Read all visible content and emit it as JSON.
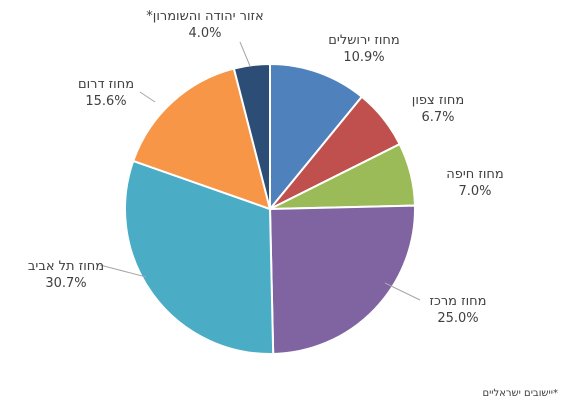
{
  "chart_data": {
    "type": "pie",
    "title": "",
    "slices": [
      {
        "name": "מחוז ירושלים",
        "value": 10.9,
        "label": "10.9%",
        "color": "#4f81bd"
      },
      {
        "name": "מחוז צפון",
        "value": 6.7,
        "label": "6.7%",
        "color": "#c0504d"
      },
      {
        "name": "מחוז חיפה",
        "value": 7.0,
        "label": "7.0%",
        "color": "#9bbb59"
      },
      {
        "name": "מחוז מרכז",
        "value": 25.0,
        "label": "25.0%",
        "color": "#8064a2"
      },
      {
        "name": "מחוז תל אביב",
        "value": 30.7,
        "label": "30.7%",
        "color": "#4bacc6"
      },
      {
        "name": "מחוז דרום",
        "value": 15.6,
        "label": "15.6%",
        "color": "#f79646"
      },
      {
        "name": "אזור יהודה והשומרון*",
        "value": 4.0,
        "label": "4.0%",
        "color": "#2c4d75"
      }
    ],
    "footnote": "*יישובים ישראליים"
  }
}
